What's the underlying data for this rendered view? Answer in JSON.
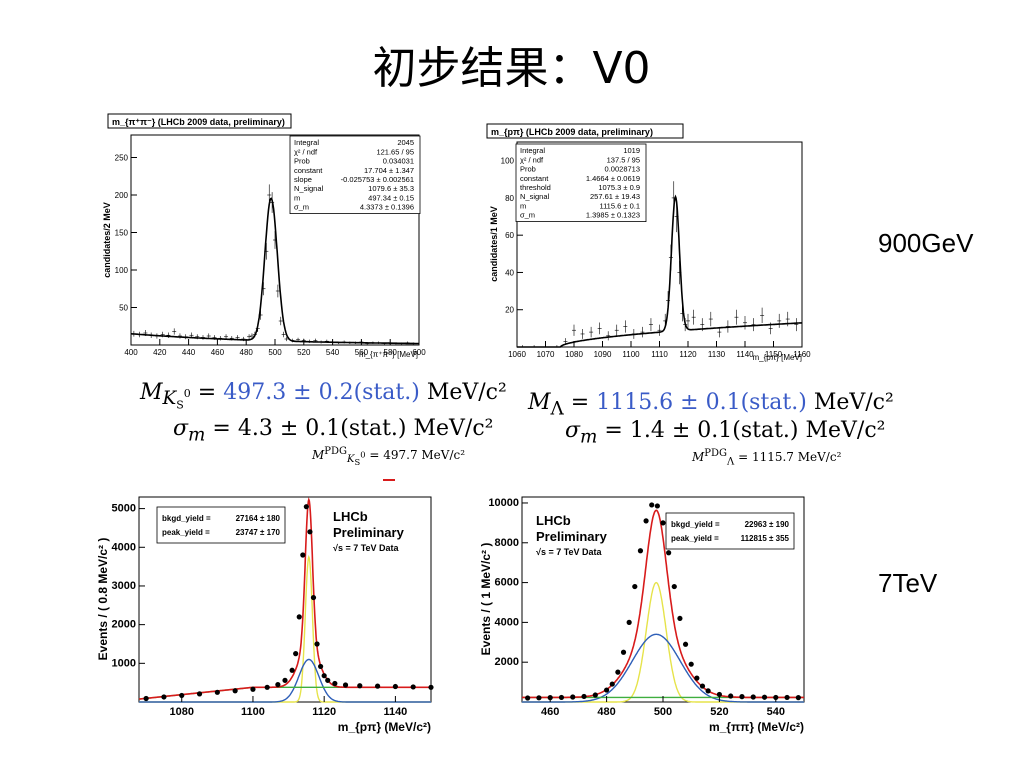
{
  "slide": {
    "title": "初步结果：V0",
    "label_900": "900GeV",
    "label_7tev": "7TeV"
  },
  "colors": {
    "fit_red": "#d81b1b",
    "fit_blue": "#2e5fb8",
    "fit_yellow": "#e6e34a",
    "fit_green": "#3fae3f",
    "eq_blue": "#3a5bc7"
  },
  "results": {
    "k0s_mass_line": {
      "lhs": "M",
      "lhs_sub": "K",
      "lhs_subsub": "S",
      "lhs_sup": "0",
      "eq": " = ",
      "value": "497.3 ± 0.2(stat.)",
      "unit": " MeV/c²"
    },
    "k0s_sigma_line": {
      "lhs": "σ",
      "lhs_sub": "m",
      "eq": " = ",
      "value": "4.3 ± 0.1(stat.)",
      "unit": " MeV/c²"
    },
    "k0s_pdg": {
      "lhs": "M",
      "lhs_sup": "PDG",
      "lhs_sub": "K",
      "lhs_subsub": "S",
      "lhs_subsup": "0",
      "rhs": " = 497.7 MeV/c²"
    },
    "lambda_mass_line": {
      "lhs": "M",
      "lhs_sub": "Λ",
      "eq": " = ",
      "value": "1115.6 ± 0.1(stat.)",
      "unit": " MeV/c²"
    },
    "lambda_sigma_line": {
      "lhs": "σ",
      "lhs_sub": "m",
      "eq": " = ",
      "value": "1.4 ± 0.1(stat.)",
      "unit": " MeV/c²"
    },
    "lambda_pdg": {
      "lhs": "M",
      "lhs_sup": "PDG",
      "lhs_sub": "Λ",
      "rhs": " = 1115.7 MeV/c²"
    }
  },
  "chart_data": [
    {
      "type": "scatter",
      "title": "m_{π⁺π⁻} (LHCb 2009 data, preliminary)",
      "xlabel": "m_{π⁺π⁻} [MeV]",
      "ylabel": "candidates/2 MeV",
      "xlim": [
        400,
        600
      ],
      "ylim": [
        0,
        280
      ],
      "xticks": [
        400,
        420,
        440,
        460,
        480,
        500,
        520,
        540,
        560,
        580,
        600
      ],
      "yticks": [
        50,
        100,
        150,
        200,
        250
      ],
      "stats": [
        [
          "Integral",
          "2045"
        ],
        [
          "χ² / ndf",
          "121.65 / 95"
        ],
        [
          "Prob",
          "0.034031"
        ],
        [
          "constant",
          "17.704 ± 1.347"
        ],
        [
          "slope",
          "-0.025753 ± 0.002561"
        ],
        [
          "N_signal",
          "1079.6 ± 35.3"
        ],
        [
          "m",
          "497.34 ± 0.15"
        ],
        [
          "σ_m",
          "4.3373 ± 0.1396"
        ]
      ],
      "fit": {
        "model": "gauss+exp",
        "mean": 497.3,
        "sigma": 4.34,
        "peak": 190,
        "bkg_at_400": 15,
        "bkg_at_600": 2
      },
      "points_x": [
        402,
        406,
        410,
        414,
        418,
        422,
        426,
        430,
        434,
        438,
        442,
        446,
        450,
        454,
        458,
        462,
        466,
        470,
        474,
        478,
        482,
        484,
        486,
        488,
        490,
        492,
        494,
        496,
        498,
        500,
        502,
        504,
        506,
        508,
        512,
        516,
        520,
        524,
        528,
        532,
        536,
        540,
        544,
        548,
        552,
        556,
        560,
        564,
        568,
        572,
        576,
        580,
        584,
        588,
        592,
        596
      ],
      "points_y": [
        15,
        14,
        16,
        13,
        12,
        14,
        13,
        18,
        12,
        11,
        13,
        11,
        10,
        12,
        10,
        9,
        11,
        9,
        10,
        8,
        11,
        12,
        14,
        22,
        40,
        75,
        125,
        200,
        190,
        140,
        72,
        32,
        14,
        8,
        6,
        7,
        6,
        5,
        6,
        4,
        5,
        4,
        3,
        4,
        3,
        3,
        4,
        2,
        3,
        3,
        2,
        3,
        2,
        2,
        3,
        2
      ]
    },
    {
      "type": "scatter",
      "title": "m_{pπ} (LHCb 2009 data, preliminary)",
      "xlabel": "m_{pπ} [MeV]",
      "ylabel": "candidates/1 MeV",
      "xlim": [
        1060,
        1160
      ],
      "ylim": [
        0,
        110
      ],
      "xticks": [
        1060,
        1070,
        1080,
        1090,
        1100,
        1110,
        1120,
        1130,
        1140,
        1150,
        1160
      ],
      "yticks": [
        20,
        40,
        60,
        80,
        100
      ],
      "stats": [
        [
          "Integral",
          "1019"
        ],
        [
          "χ² / ndf",
          "137.5 / 95"
        ],
        [
          "Prob",
          "0.0028713"
        ],
        [
          "constant",
          "1.4664 ± 0.0619"
        ],
        [
          "threshold",
          "1075.3 ± 0.9"
        ],
        [
          "N_signal",
          "257.61 ± 19.43"
        ],
        [
          "m",
          "1115.6 ± 0.1"
        ],
        [
          "σ_m",
          "1.3985 ± 0.1323"
        ]
      ],
      "fit": {
        "model": "gauss+threshold",
        "mean": 1115.6,
        "sigma": 1.4,
        "peak": 72,
        "threshold": 1075.3,
        "bkg_level": 13
      },
      "points_x": [
        1062,
        1066,
        1070,
        1074,
        1077,
        1080,
        1083,
        1086,
        1089,
        1092,
        1095,
        1098,
        1101,
        1104,
        1107,
        1110,
        1112,
        1113,
        1114,
        1115,
        1116,
        1117,
        1118,
        1119,
        1120,
        1122,
        1125,
        1128,
        1131,
        1134,
        1137,
        1140,
        1143,
        1146,
        1149,
        1152,
        1155,
        1158
      ],
      "points_y": [
        0,
        0,
        0,
        0,
        3,
        9,
        7,
        8,
        10,
        6,
        9,
        11,
        7,
        8,
        12,
        9,
        14,
        25,
        48,
        80,
        70,
        40,
        18,
        12,
        14,
        16,
        12,
        15,
        8,
        11,
        16,
        13,
        12,
        17,
        10,
        14,
        15,
        12
      ]
    },
    {
      "type": "scatter",
      "title": "",
      "xlabel": "m_{pπ} (MeV/c²)",
      "ylabel": "Events / ( 0.8 MeV/c² )",
      "xlim": [
        1068,
        1150
      ],
      "ylim": [
        0,
        5300
      ],
      "xticks": [
        1080,
        1100,
        1120,
        1140
      ],
      "yticks": [
        1000,
        2000,
        3000,
        4000,
        5000
      ],
      "legend": [
        "LHCb",
        "Preliminary",
        "√s = 7 TeV Data"
      ],
      "stats": [
        [
          "bkgd_yield = ",
          "27164 ± 180"
        ],
        [
          "peak_yield = ",
          "23747 ± 170"
        ]
      ],
      "fit": {
        "mean": 1115.7,
        "narrow_sigma": 1.0,
        "narrow_peak": 3750,
        "wide_sigma": 2.8,
        "wide_peak": 1100,
        "bkg": 380
      },
      "points_x": [
        1070,
        1075,
        1080,
        1085,
        1090,
        1095,
        1100,
        1104,
        1107,
        1109,
        1111,
        1112,
        1113,
        1114,
        1115,
        1116,
        1117,
        1118,
        1119,
        1120,
        1121,
        1123,
        1126,
        1130,
        1135,
        1140,
        1145,
        1150
      ],
      "points_y": [
        90,
        130,
        170,
        210,
        250,
        290,
        330,
        380,
        450,
        560,
        820,
        1250,
        2200,
        3800,
        5050,
        4400,
        2700,
        1500,
        920,
        680,
        560,
        480,
        440,
        420,
        410,
        400,
        390,
        380
      ]
    },
    {
      "type": "scatter",
      "title": "",
      "xlabel": "m_{ππ} (MeV/c²)",
      "ylabel": "Events / ( 1 MeV/c² )",
      "xlim": [
        450,
        550
      ],
      "ylim": [
        0,
        10300
      ],
      "xticks": [
        460,
        480,
        500,
        520,
        540
      ],
      "yticks": [
        2000,
        4000,
        6000,
        8000,
        10000
      ],
      "legend": [
        "LHCb",
        "Preliminary",
        "√s = 7 TeV Data"
      ],
      "stats": [
        [
          "bkgd_yield = ",
          "22963 ± 190"
        ],
        [
          "peak_yield = ",
          "112815 ± 355"
        ]
      ],
      "fit": {
        "mean": 497.6,
        "narrow_sigma": 3.5,
        "narrow_peak": 6000,
        "wide_sigma": 8.5,
        "wide_peak": 3400,
        "bkg": 230
      },
      "points_x": [
        452,
        456,
        460,
        464,
        468,
        472,
        476,
        480,
        482,
        484,
        486,
        488,
        490,
        492,
        494,
        496,
        498,
        500,
        502,
        504,
        506,
        508,
        510,
        512,
        514,
        516,
        520,
        524,
        528,
        532,
        536,
        540,
        544,
        548
      ],
      "points_y": [
        200,
        210,
        220,
        230,
        250,
        280,
        350,
        600,
        900,
        1500,
        2500,
        4000,
        5800,
        7600,
        9100,
        9900,
        9850,
        9000,
        7500,
        5800,
        4200,
        2900,
        1900,
        1200,
        800,
        560,
        380,
        300,
        270,
        250,
        240,
        230,
        230,
        220
      ]
    }
  ]
}
